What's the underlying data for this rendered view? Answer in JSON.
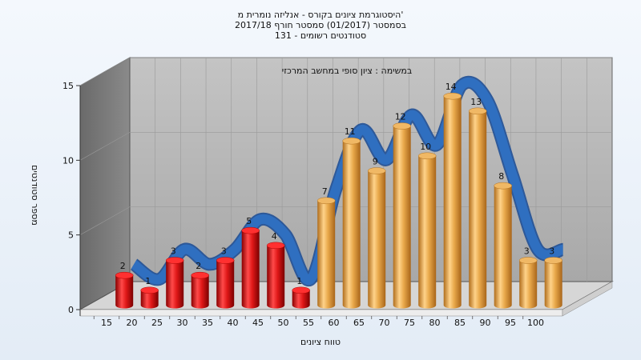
{
  "chart_data": {
    "type": "bar",
    "title_lines": [
      "היסטוגרמת ציונים בקורס - אנליזה נומרית מ'",
      "בסמסטר  (01/2017)  סמסטר חורף  2017/18",
      "סטודנטים רשומים - 131"
    ],
    "annotation": "במשימה : ציון סופי במחשב המרכזי",
    "xlabel": "טווח ציונים",
    "ylabel": "מספר סטודנטים",
    "categories": [
      "15",
      "20",
      "25",
      "30",
      "35",
      "40",
      "45",
      "50",
      "55",
      "60",
      "65",
      "70",
      "75",
      "80",
      "85",
      "90",
      "95",
      "100"
    ],
    "values": [
      2,
      1,
      3,
      2,
      3,
      5,
      4,
      1,
      7,
      11,
      9,
      12,
      10,
      14,
      13,
      8,
      3,
      3
    ],
    "failing_count": 8,
    "y_ticks": [
      0,
      5,
      10,
      15
    ],
    "ylim": [
      0,
      15
    ],
    "grid": true,
    "trend_line": "smoothed curve following bar values",
    "colors": {
      "failing": "#e01818",
      "passing": "#e8a84a",
      "trend": "#2f6fc0",
      "wall": "#b4b4b4",
      "side_wall": "#7a7a7a"
    }
  }
}
